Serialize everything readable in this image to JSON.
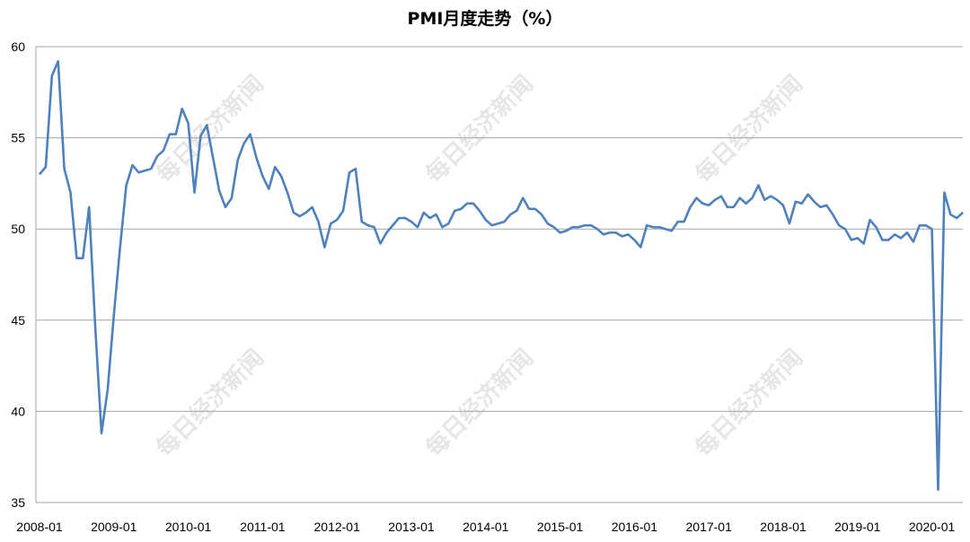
{
  "chart_data": {
    "type": "line",
    "title": "PMI月度走势（%）",
    "xlabel": "",
    "ylabel": "",
    "ylim": [
      35,
      60
    ],
    "yticks": [
      35,
      40,
      45,
      50,
      55,
      60
    ],
    "grid": true,
    "legend": "none",
    "line_color": "#4f81bd",
    "grid_color": "#a6a6a6",
    "x_tick_labels": [
      "2008-01",
      "2009-01",
      "2010-01",
      "2011-01",
      "2012-01",
      "2013-01",
      "2014-01",
      "2015-01",
      "2016-01",
      "2017-01",
      "2018-01",
      "2019-01",
      "2020-01"
    ],
    "start_month": "2008-01",
    "series": [
      {
        "values": [
          53.0,
          53.4,
          58.4,
          59.2,
          53.3,
          52.0,
          48.4,
          48.4,
          51.2,
          44.6,
          38.8,
          41.2,
          45.3,
          49.0,
          52.4,
          53.5,
          53.1,
          53.2,
          53.3,
          54.0,
          54.3,
          55.2,
          55.2,
          56.6,
          55.8,
          52.0,
          55.1,
          55.7,
          53.9,
          52.1,
          51.2,
          51.7,
          53.8,
          54.7,
          55.2,
          53.9,
          52.9,
          52.2,
          53.4,
          52.9,
          52.0,
          50.9,
          50.7,
          50.9,
          51.2,
          50.4,
          49.0,
          50.3,
          50.5,
          51.0,
          53.1,
          53.3,
          50.4,
          50.2,
          50.1,
          49.2,
          49.8,
          50.2,
          50.6,
          50.6,
          50.4,
          50.1,
          50.9,
          50.6,
          50.8,
          50.1,
          50.3,
          51.0,
          51.1,
          51.4,
          51.4,
          51.0,
          50.5,
          50.2,
          50.3,
          50.4,
          50.8,
          51.0,
          51.7,
          51.1,
          51.1,
          50.8,
          50.3,
          50.1,
          49.8,
          49.9,
          50.1,
          50.1,
          50.2,
          50.2,
          50.0,
          49.7,
          49.8,
          49.8,
          49.6,
          49.7,
          49.4,
          49.0,
          50.2,
          50.1,
          50.1,
          50.0,
          49.9,
          50.4,
          50.4,
          51.2,
          51.7,
          51.4,
          51.3,
          51.6,
          51.8,
          51.2,
          51.2,
          51.7,
          51.4,
          51.7,
          52.4,
          51.6,
          51.8,
          51.6,
          51.3,
          50.3,
          51.5,
          51.4,
          51.9,
          51.5,
          51.2,
          51.3,
          50.8,
          50.2,
          50.0,
          49.4,
          49.5,
          49.2,
          50.5,
          50.1,
          49.4,
          49.4,
          49.7,
          49.5,
          49.8,
          49.3,
          50.2,
          50.2,
          50.0,
          35.7,
          52.0,
          50.8,
          50.6,
          50.9
        ]
      }
    ]
  },
  "watermark": {
    "text": "每日经济新闻"
  }
}
